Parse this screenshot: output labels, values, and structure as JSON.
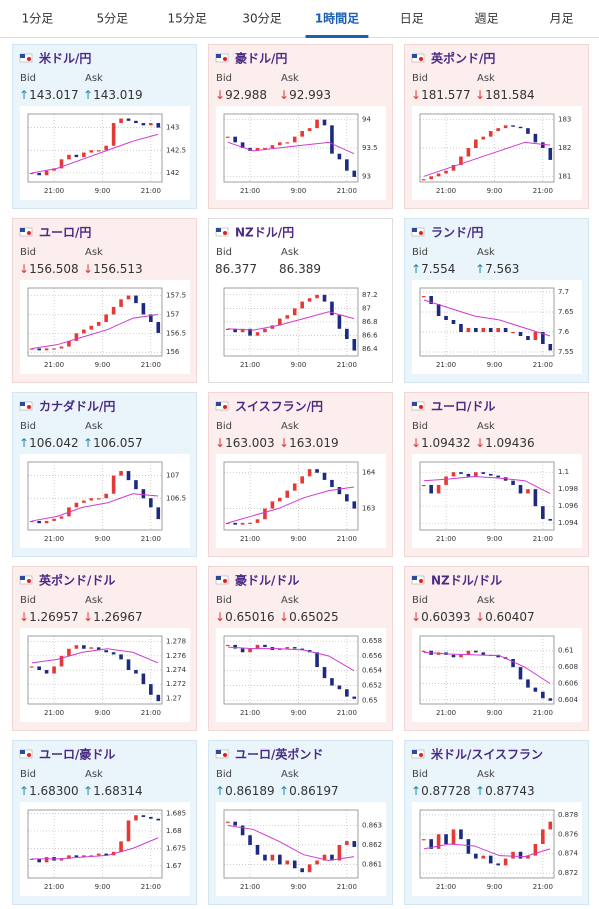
{
  "tabs": [
    "1分足",
    "5分足",
    "15分足",
    "30分足",
    "1時間足",
    "日足",
    "週足",
    "月足"
  ],
  "active_tab": 4,
  "bid_label": "Bid",
  "ask_label": "Ask",
  "xticks": [
    {
      "value": 3,
      "label": "21:00"
    },
    {
      "value": 9.5,
      "label": "9:00"
    },
    {
      "value": 16,
      "label": "21:00"
    }
  ],
  "cards": [
    {
      "pair": "米ドル/円",
      "trend_bid": "↑",
      "bid": "143.017",
      "trend_ask": "↑",
      "ask": "143.019",
      "ylim": [
        141.8,
        143.3
      ],
      "yticks": [
        142,
        142.5,
        143
      ],
      "closes": [
        142.0,
        141.95,
        142.05,
        142.1,
        142.3,
        142.4,
        142.35,
        142.45,
        142.5,
        142.5,
        142.6,
        143.1,
        143.2,
        143.15,
        143.1,
        143.05,
        143.1,
        143.0
      ],
      "ma": [
        142.0,
        142.1,
        142.3,
        142.5,
        142.7,
        142.85
      ]
    },
    {
      "pair": "豪ドル/円",
      "trend_bid": "↓",
      "bid": "92.988",
      "trend_ask": "↓",
      "ask": "92.993",
      "ylim": [
        92.9,
        94.1
      ],
      "yticks": [
        93,
        93.5,
        94
      ],
      "closes": [
        93.7,
        93.6,
        93.5,
        93.45,
        93.5,
        93.5,
        93.55,
        93.6,
        93.6,
        93.7,
        93.8,
        93.85,
        94.0,
        93.9,
        93.4,
        93.3,
        93.1,
        92.99
      ],
      "ma": [
        93.6,
        93.45,
        93.5,
        93.55,
        93.6,
        93.4
      ]
    },
    {
      "pair": "英ポンド/円",
      "trend_bid": "↓",
      "bid": "181.577",
      "trend_ask": "↓",
      "ask": "181.584",
      "ylim": [
        180.8,
        183.2
      ],
      "yticks": [
        181,
        182,
        183
      ],
      "closes": [
        180.9,
        181.0,
        181.1,
        181.2,
        181.4,
        181.7,
        182.0,
        182.3,
        182.4,
        182.6,
        182.7,
        182.8,
        182.75,
        182.7,
        182.5,
        182.2,
        182.0,
        181.58
      ],
      "ma": [
        181.0,
        181.3,
        181.6,
        181.9,
        182.2,
        182.1
      ]
    },
    {
      "pair": "ユーロ/円",
      "trend_bid": "↓",
      "bid": "156.508",
      "trend_ask": "↓",
      "ask": "156.513",
      "ylim": [
        155.9,
        157.7
      ],
      "yticks": [
        156,
        156.5,
        157,
        157.5
      ],
      "closes": [
        156.1,
        156.05,
        156.1,
        156.1,
        156.15,
        156.3,
        156.5,
        156.6,
        156.7,
        156.8,
        157.0,
        157.2,
        157.4,
        157.5,
        157.3,
        157.0,
        156.8,
        156.51
      ],
      "ma": [
        156.1,
        156.2,
        156.4,
        156.6,
        156.9,
        157.0
      ]
    },
    {
      "pair": "NZドル/円",
      "bid": "86.377",
      "ask": "86.389",
      "ylim": [
        86.3,
        87.3
      ],
      "yticks": [
        86.4,
        86.6,
        86.8,
        87,
        87.2
      ],
      "closes": [
        86.7,
        86.65,
        86.7,
        86.6,
        86.65,
        86.7,
        86.75,
        86.85,
        86.9,
        87.0,
        87.1,
        87.15,
        87.2,
        87.1,
        86.9,
        86.7,
        86.55,
        86.38
      ],
      "ma": [
        86.7,
        86.68,
        86.75,
        86.85,
        86.95,
        86.85
      ]
    },
    {
      "pair": "ランド/円",
      "trend_bid": "↑",
      "bid": "7.554",
      "trend_ask": "↑",
      "ask": "7.563",
      "ylim": [
        7.54,
        7.71
      ],
      "yticks": [
        7.55,
        7.6,
        7.65,
        7.7
      ],
      "closes": [
        7.69,
        7.67,
        7.64,
        7.63,
        7.62,
        7.6,
        7.61,
        7.6,
        7.61,
        7.6,
        7.61,
        7.6,
        7.6,
        7.59,
        7.58,
        7.6,
        7.57,
        7.554
      ],
      "ma": [
        7.68,
        7.66,
        7.64,
        7.63,
        7.61,
        7.59
      ]
    },
    {
      "pair": "カナダドル/円",
      "trend_bid": "↑",
      "bid": "106.042",
      "trend_ask": "↑",
      "ask": "106.057",
      "ylim": [
        105.8,
        107.3
      ],
      "yticks": [
        106.5,
        107
      ],
      "closes": [
        106.0,
        105.95,
        106.0,
        106.05,
        106.1,
        106.3,
        106.4,
        106.45,
        106.5,
        106.5,
        106.6,
        107.0,
        107.1,
        106.9,
        106.7,
        106.5,
        106.3,
        106.04
      ],
      "ma": [
        106.0,
        106.1,
        106.3,
        106.4,
        106.6,
        106.55
      ]
    },
    {
      "pair": "スイスフラン/円",
      "trend_bid": "↓",
      "bid": "163.003",
      "trend_ask": "↓",
      "ask": "163.019",
      "ylim": [
        162.4,
        164.3
      ],
      "yticks": [
        163,
        164
      ],
      "closes": [
        162.6,
        162.55,
        162.6,
        162.6,
        162.7,
        163.0,
        163.2,
        163.3,
        163.5,
        163.7,
        163.9,
        164.1,
        164.0,
        163.8,
        163.6,
        163.4,
        163.2,
        163.0
      ],
      "ma": [
        162.6,
        162.8,
        163.0,
        163.3,
        163.5,
        163.6
      ]
    },
    {
      "pair": "ユーロ/ドル",
      "trend_bid": "↓",
      "bid": "1.09432",
      "trend_ask": "↓",
      "ask": "1.09436",
      "ylim": [
        1.0932,
        1.1012
      ],
      "yticks": [
        1.094,
        1.096,
        1.098,
        1.1
      ],
      "closes": [
        1.0985,
        1.0975,
        1.0985,
        1.0995,
        1.1,
        1.0998,
        1.0995,
        1.1,
        1.0998,
        1.0996,
        1.0994,
        1.099,
        1.0985,
        1.0975,
        1.098,
        1.096,
        1.0945,
        1.0943
      ],
      "ma": [
        1.099,
        1.0992,
        1.0995,
        1.0993,
        1.099,
        1.0975
      ]
    },
    {
      "pair": "英ポンド/ドル",
      "trend_bid": "↓",
      "bid": "1.26957",
      "trend_ask": "↓",
      "ask": "1.26967",
      "ylim": [
        1.2692,
        1.2788
      ],
      "yticks": [
        1.27,
        1.272,
        1.274,
        1.276,
        1.278
      ],
      "closes": [
        1.2745,
        1.274,
        1.2735,
        1.2745,
        1.276,
        1.277,
        1.2775,
        1.277,
        1.2772,
        1.2768,
        1.2765,
        1.2762,
        1.2755,
        1.274,
        1.2735,
        1.272,
        1.2705,
        1.2696
      ],
      "ma": [
        1.275,
        1.2755,
        1.2765,
        1.277,
        1.2765,
        1.275
      ]
    },
    {
      "pair": "豪ドル/ドル",
      "trend_bid": "↓",
      "bid": "0.65016",
      "trend_ask": "↓",
      "ask": "0.65025",
      "ylim": [
        0.6495,
        0.6587
      ],
      "yticks": [
        0.65,
        0.652,
        0.654,
        0.656,
        0.658
      ],
      "closes": [
        0.6575,
        0.657,
        0.6565,
        0.657,
        0.6575,
        0.6572,
        0.6568,
        0.657,
        0.6572,
        0.657,
        0.6568,
        0.6565,
        0.6545,
        0.653,
        0.652,
        0.6515,
        0.6505,
        0.6502
      ],
      "ma": [
        0.6572,
        0.657,
        0.657,
        0.6568,
        0.656,
        0.654
      ]
    },
    {
      "pair": "NZドル/ドル",
      "trend_bid": "↓",
      "bid": "0.60393",
      "trend_ask": "↓",
      "ask": "0.60407",
      "ylim": [
        0.6035,
        0.6118
      ],
      "yticks": [
        0.604,
        0.606,
        0.608,
        0.61
      ],
      "closes": [
        0.61,
        0.6095,
        0.6098,
        0.6095,
        0.6092,
        0.6095,
        0.61,
        0.6098,
        0.6095,
        0.6095,
        0.6092,
        0.609,
        0.608,
        0.6065,
        0.6055,
        0.605,
        0.6042,
        0.6039
      ],
      "ma": [
        0.6098,
        0.6096,
        0.6095,
        0.6094,
        0.608,
        0.606
      ]
    },
    {
      "pair": "ユーロ/豪ドル",
      "trend_bid": "↑",
      "bid": "1.68300",
      "trend_ask": "↑",
      "ask": "1.68314",
      "ylim": [
        1.6665,
        1.686
      ],
      "yticks": [
        1.67,
        1.675,
        1.68,
        1.685
      ],
      "closes": [
        1.672,
        1.671,
        1.6725,
        1.6715,
        1.672,
        1.673,
        1.6725,
        1.673,
        1.673,
        1.6735,
        1.673,
        1.674,
        1.677,
        1.683,
        1.6845,
        1.684,
        1.6835,
        1.683
      ],
      "ma": [
        1.672,
        1.672,
        1.6725,
        1.673,
        1.675,
        1.678
      ]
    },
    {
      "pair": "ユーロ/英ポンド",
      "trend_bid": "↑",
      "bid": "0.86189",
      "trend_ask": "↑",
      "ask": "0.86197",
      "ylim": [
        0.8603,
        0.8638
      ],
      "yticks": [
        0.861,
        0.862,
        0.863
      ],
      "closes": [
        0.8632,
        0.863,
        0.8625,
        0.862,
        0.8615,
        0.8612,
        0.8615,
        0.861,
        0.8612,
        0.8608,
        0.8606,
        0.861,
        0.8612,
        0.8615,
        0.8612,
        0.862,
        0.8622,
        0.8619
      ],
      "ma": [
        0.863,
        0.8628,
        0.8622,
        0.8615,
        0.8612,
        0.8614
      ]
    },
    {
      "pair": "米ドル/スイスフラン",
      "trend_bid": "↑",
      "bid": "0.87728",
      "trend_ask": "↑",
      "ask": "0.87743",
      "ylim": [
        0.8715,
        0.8785
      ],
      "yticks": [
        0.872,
        0.874,
        0.876,
        0.878
      ],
      "closes": [
        0.8755,
        0.8745,
        0.876,
        0.875,
        0.8765,
        0.8755,
        0.874,
        0.8735,
        0.8738,
        0.873,
        0.8728,
        0.8735,
        0.8742,
        0.8735,
        0.8738,
        0.875,
        0.8765,
        0.8773
      ],
      "ma": [
        0.8745,
        0.875,
        0.8748,
        0.8738,
        0.8737,
        0.8745
      ]
    }
  ]
}
